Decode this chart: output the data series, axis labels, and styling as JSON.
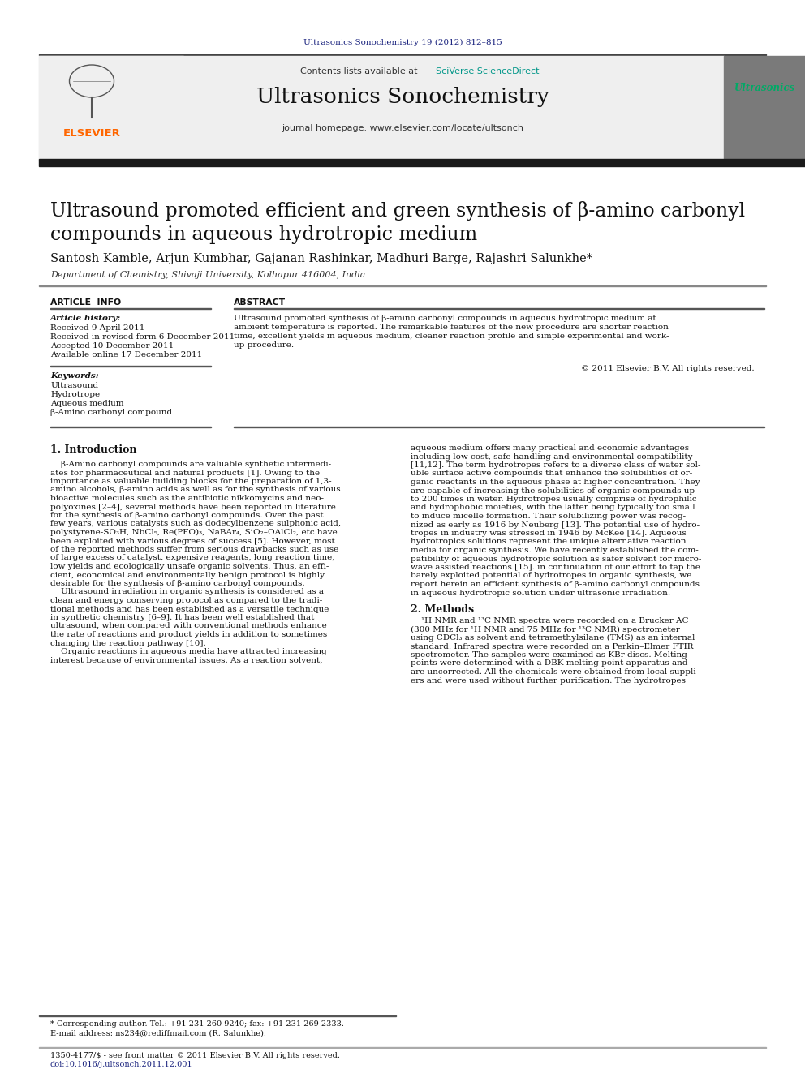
{
  "page_title_journal": "Ultrasonics Sonochemistry 19 (2012) 812–815",
  "journal_name": "Ultrasonics Sonochemistry",
  "contents_line": "Contents lists available at SciVerse ScienceDirect",
  "journal_homepage": "journal homepage: www.elsevier.com/locate/ultsonch",
  "paper_title": "Ultrasound promoted efficient and green synthesis of β-amino carbonyl\ncompounds in aqueous hydrotropic medium",
  "authors": "Santosh Kamble, Arjun Kumbhar, Gajanan Rashinkar, Madhuri Barge, Rajashri Salunkhe*",
  "affiliation": "Department of Chemistry, Shivaji University, Kolhapur 416004, India",
  "section_article_info": "ARTICLE  INFO",
  "section_abstract": "ABSTRACT",
  "article_history_label": "Article history:",
  "article_history": [
    "Received 9 April 2011",
    "Received in revised form 6 December 2011",
    "Accepted 10 December 2011",
    "Available online 17 December 2011"
  ],
  "keywords_label": "Keywords:",
  "keywords": [
    "Ultrasound",
    "Hydrotrope",
    "Aqueous medium",
    "β-Amino carbonyl compound"
  ],
  "abstract_text_lines": [
    "Ultrasound promoted synthesis of β-amino carbonyl compounds in aqueous hydrotropic medium at",
    "ambient temperature is reported. The remarkable features of the new procedure are shorter reaction",
    "time, excellent yields in aqueous medium, cleaner reaction profile and simple experimental and work-",
    "up procedure."
  ],
  "copyright": "© 2011 Elsevier B.V. All rights reserved.",
  "section1_title": "1. Introduction",
  "intro_col1_lines": [
    "    β-Amino carbonyl compounds are valuable synthetic intermedi-",
    "ates for pharmaceutical and natural products [1]. Owing to the",
    "importance as valuable building blocks for the preparation of 1,3-",
    "amino alcohols, β-amino acids as well as for the synthesis of various",
    "bioactive molecules such as the antibiotic nikkomycins and neo-",
    "polyoxines [2–4], several methods have been reported in literature",
    "for the synthesis of β-amino carbonyl compounds. Over the past",
    "few years, various catalysts such as dodecylbenzene sulphonic acid,",
    "polystyrene-SO₃H, NbCl₅, Re(PFO)₃, NaBAr₄, SiO₂–OAlCl₂, etc have",
    "been exploited with various degrees of success [5]. However, most",
    "of the reported methods suffer from serious drawbacks such as use",
    "of large excess of catalyst, expensive reagents, long reaction time,",
    "low yields and ecologically unsafe organic solvents. Thus, an effi-",
    "cient, economical and environmentally benign protocol is highly",
    "desirable for the synthesis of β-amino carbonyl compounds.",
    "    Ultrasound irradiation in organic synthesis is considered as a",
    "clean and energy conserving protocol as compared to the tradi-",
    "tional methods and has been established as a versatile technique",
    "in synthetic chemistry [6–9]. It has been well established that",
    "ultrasound, when compared with conventional methods enhance",
    "the rate of reactions and product yields in addition to sometimes",
    "changing the reaction pathway [10].",
    "    Organic reactions in aqueous media have attracted increasing",
    "interest because of environmental issues. As a reaction solvent,"
  ],
  "intro_col2_lines": [
    "aqueous medium offers many practical and economic advantages",
    "including low cost, safe handling and environmental compatibility",
    "[11,12]. The term hydrotropes refers to a diverse class of water sol-",
    "uble surface active compounds that enhance the solubilities of or-",
    "ganic reactants in the aqueous phase at higher concentration. They",
    "are capable of increasing the solubilities of organic compounds up",
    "to 200 times in water. Hydrotropes usually comprise of hydrophilic",
    "and hydrophobic moieties, with the latter being typically too small",
    "to induce micelle formation. Their solubilizing power was recog-",
    "nized as early as 1916 by Neuberg [13]. The potential use of hydro-",
    "tropes in industry was stressed in 1946 by McKee [14]. Aqueous",
    "hydrotropics solutions represent the unique alternative reaction",
    "media for organic synthesis. We have recently established the com-",
    "patibility of aqueous hydrotropic solution as safer solvent for micro-",
    "wave assisted reactions [15]. in continuation of our effort to tap the",
    "barely exploited potential of hydrotropes in organic synthesis, we",
    "report herein an efficient synthesis of β-amino carbonyl compounds",
    "in aqueous hydrotropic solution under ultrasonic irradiation."
  ],
  "section2_title": "2. Methods",
  "methods_lines": [
    "    ¹H NMR and ¹³C NMR spectra were recorded on a Brucker AC",
    "(300 MHz for ¹H NMR and 75 MHz for ¹³C NMR) spectrometer",
    "using CDCl₃ as solvent and tetramethylsilane (TMS) as an internal",
    "standard. Infrared spectra were recorded on a Perkin–Elmer FTIR",
    "spectrometer. The samples were examined as KBr discs. Melting",
    "points were determined with a DBK melting point apparatus and",
    "are uncorrected. All the chemicals were obtained from local suppli-",
    "ers and were used without further purification. The hydrotropes"
  ],
  "footnote1": "* Corresponding author. Tel.: +91 231 260 9240; fax: +91 231 269 2333.",
  "footnote2": "E-mail address: ns234@rediffmail.com (R. Salunkhe).",
  "footnote3": "1350-4177/$ - see front matter © 2011 Elsevier B.V. All rights reserved.",
  "footnote4": "doi:10.1016/j.ultsonch.2011.12.001",
  "bg_header": "#efefef",
  "bg_white": "#ffffff",
  "bg_dark_bar": "#1a1a1a",
  "color_elsevier": "#ff6600",
  "color_journal_link": "#1a237e",
  "color_sciverse": "#009688",
  "color_blue_link": "#1a237e"
}
